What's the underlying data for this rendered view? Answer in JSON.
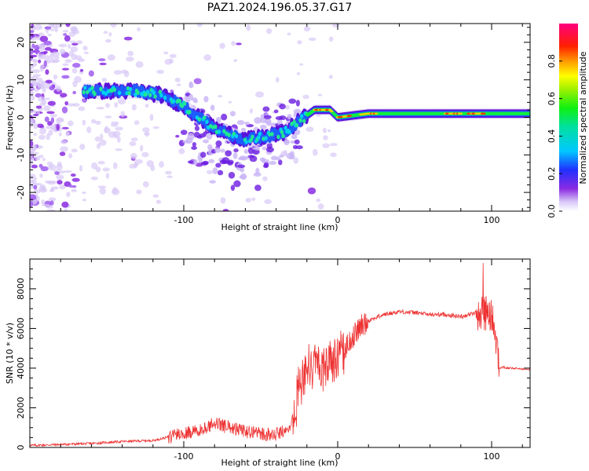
{
  "title": "PAZ1.2024.196.05.37.G17",
  "colors": {
    "snr_line": "#ee3333",
    "main_band": "#00dd66",
    "band_core": "#ff2200",
    "noise": "#9966ee"
  },
  "chart_data": [
    {
      "type": "heatmap",
      "xlabel": "Height of straight line (km)",
      "ylabel": "Frequency (Hz)",
      "xlim": [
        -200,
        125
      ],
      "ylim": [
        -25,
        25
      ],
      "xticks": [
        -100,
        0,
        100
      ],
      "yticks": [
        -20,
        -10,
        0,
        10,
        20
      ],
      "colormap": "rainbow",
      "colorbar": {
        "label": "Normalized spectral amplitude",
        "range": [
          0,
          1
        ],
        "ticks": [
          0.0,
          0.2,
          0.4,
          0.6,
          0.8
        ]
      },
      "ridge": {
        "x": [
          -165,
          -150,
          -130,
          -115,
          -100,
          -80,
          -60,
          -45,
          -35,
          -25,
          -15,
          -5,
          0,
          20,
          40,
          60,
          80,
          95,
          105,
          125
        ],
        "y": [
          7,
          7,
          7,
          6,
          3,
          -3,
          -6,
          -5,
          -4,
          -1,
          2,
          2,
          0,
          1,
          1,
          1,
          1,
          1,
          1,
          1
        ]
      }
    },
    {
      "type": "line",
      "xlabel": "Height of straight line (km)",
      "ylabel": "SNR (10 * v/v)",
      "xlim": [
        -200,
        125
      ],
      "ylim": [
        0,
        9500
      ],
      "xticks": [
        -100,
        0,
        100
      ],
      "yticks": [
        0,
        2000,
        4000,
        6000,
        8000
      ],
      "series": [
        {
          "x": [
            -200,
            -180,
            -160,
            -140,
            -120,
            -100,
            -90,
            -80,
            -70,
            -60,
            -50,
            -40,
            -30,
            -25,
            -20,
            -15,
            -10,
            -5,
            0,
            5,
            10,
            15,
            20,
            30,
            40,
            50,
            60,
            70,
            80,
            90,
            95,
            100,
            103,
            105,
            108,
            110,
            125
          ],
          "values": [
            100,
            150,
            200,
            300,
            350,
            700,
            900,
            1200,
            1000,
            800,
            700,
            650,
            1000,
            3000,
            4000,
            4200,
            4000,
            4200,
            4500,
            5000,
            5600,
            6100,
            6400,
            6700,
            6850,
            6800,
            6700,
            6700,
            6600,
            6800,
            6800,
            6600,
            5500,
            4000,
            4050,
            4000,
            3950
          ]
        }
      ]
    }
  ]
}
